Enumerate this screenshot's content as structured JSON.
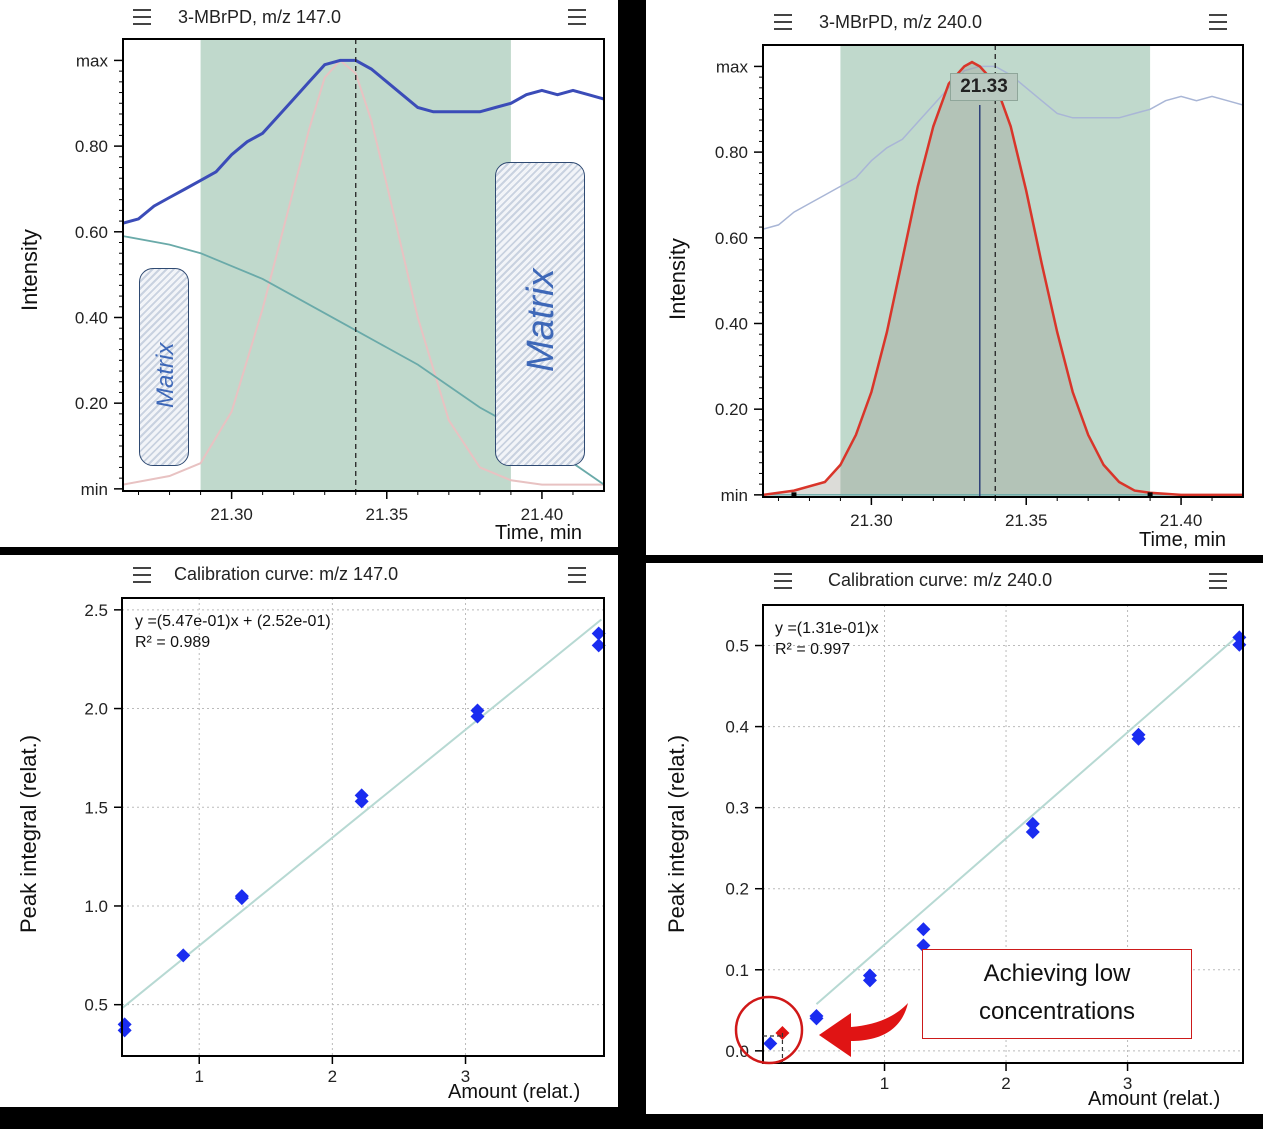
{
  "colors": {
    "peak_window": "#8cb9a2",
    "matrix_trace": "#3b4cb8",
    "baseline_trace": "#6aaaa9",
    "analyte_trace": "#d9352a",
    "faint_analyte": "#e8c2c2",
    "points": "#1a2cf0",
    "highlight_point": "#e01414",
    "fit_line": "#b7d9d3"
  },
  "panels": {
    "tl": {
      "title": "3-MBrPD, m/z 147.0",
      "ylabel": "Intensity",
      "xlabel": "Time, min",
      "matrix_left": "Matrix",
      "matrix_right": "Matrix"
    },
    "tr": {
      "title": "3-MBrPD, m/z 240.0",
      "ylabel": "Intensity",
      "xlabel": "Time, min",
      "peak_label": "21.33"
    },
    "bl": {
      "title": "Calibration curve: m/z 147.0",
      "ylabel": "Peak integral (relat.)",
      "xlabel": "Amount (relat.)",
      "equation": "y =(5.47e-01)x + (2.52e-01)",
      "r2": "R² = 0.989"
    },
    "br": {
      "title": "Calibration curve: m/z 240.0",
      "ylabel": "Peak integral (relat.)",
      "xlabel": "Amount (relat.)",
      "equation": "y =(1.31e-01)x",
      "r2": "R² = 0.997",
      "callout": "Achieving low concentrations"
    }
  },
  "chart_data": [
    {
      "type": "line",
      "title": "3-MBrPD, m/z 147.0",
      "xlabel": "Time, min",
      "ylabel": "Intensity",
      "xlim": [
        21.265,
        21.42
      ],
      "ylim": [
        -0.005,
        1.05
      ],
      "y_tick_labels": [
        "min",
        "0.20",
        "0.40",
        "0.60",
        "0.80",
        "max"
      ],
      "y_tick_values": [
        0,
        0.2,
        0.4,
        0.6,
        0.8,
        1.0
      ],
      "x_ticks": [
        21.3,
        21.35,
        21.4
      ],
      "x_tick_labels": [
        "21.30",
        "21.35",
        "21.40"
      ],
      "peak_window": [
        21.29,
        21.39
      ],
      "marker_line": 21.34,
      "series": [
        {
          "role": "matrix",
          "x": [
            21.265,
            21.27,
            21.275,
            21.28,
            21.285,
            21.29,
            21.295,
            21.3,
            21.305,
            21.31,
            21.315,
            21.32,
            21.325,
            21.33,
            21.335,
            21.34,
            21.345,
            21.35,
            21.355,
            21.36,
            21.365,
            21.37,
            21.375,
            21.38,
            21.385,
            21.39,
            21.395,
            21.4,
            21.405,
            21.41,
            21.415,
            21.42
          ],
          "y": [
            0.62,
            0.63,
            0.66,
            0.68,
            0.7,
            0.72,
            0.74,
            0.78,
            0.81,
            0.83,
            0.87,
            0.91,
            0.95,
            0.99,
            1.0,
            1.0,
            0.98,
            0.95,
            0.92,
            0.89,
            0.88,
            0.88,
            0.88,
            0.88,
            0.89,
            0.9,
            0.92,
            0.93,
            0.92,
            0.93,
            0.92,
            0.91
          ]
        },
        {
          "role": "baseline",
          "x": [
            21.265,
            21.28,
            21.29,
            21.3,
            21.31,
            21.32,
            21.33,
            21.34,
            21.35,
            21.36,
            21.37,
            21.38,
            21.39,
            21.4,
            21.41,
            21.42
          ],
          "y": [
            0.59,
            0.57,
            0.55,
            0.52,
            0.49,
            0.45,
            0.41,
            0.37,
            0.33,
            0.29,
            0.24,
            0.19,
            0.15,
            0.1,
            0.06,
            0.01
          ]
        },
        {
          "role": "analyte",
          "x": [
            21.265,
            21.28,
            21.29,
            21.3,
            21.31,
            21.32,
            21.325,
            21.33,
            21.335,
            21.34,
            21.345,
            21.35,
            21.36,
            21.37,
            21.38,
            21.39,
            21.4,
            21.42
          ],
          "y": [
            0.01,
            0.03,
            0.06,
            0.18,
            0.42,
            0.7,
            0.84,
            0.96,
            1.0,
            0.97,
            0.86,
            0.71,
            0.4,
            0.16,
            0.05,
            0.02,
            0.01,
            0.01
          ]
        }
      ]
    },
    {
      "type": "line",
      "title": "3-MBrPD, m/z 240.0",
      "xlabel": "Time, min",
      "ylabel": "Intensity",
      "xlim": [
        21.265,
        21.42
      ],
      "ylim": [
        -0.005,
        1.05
      ],
      "y_tick_labels": [
        "min",
        "0.20",
        "0.40",
        "0.60",
        "0.80",
        "max"
      ],
      "y_tick_values": [
        0,
        0.2,
        0.4,
        0.6,
        0.8,
        1.0
      ],
      "x_ticks": [
        21.3,
        21.35,
        21.4
      ],
      "x_tick_labels": [
        "21.30",
        "21.35",
        "21.40"
      ],
      "peak_window": [
        21.29,
        21.39
      ],
      "marker_line": 21.34,
      "apex_line": 21.335,
      "peak_label": "21.33",
      "series": [
        {
          "role": "matrix",
          "x": [
            21.265,
            21.27,
            21.275,
            21.28,
            21.285,
            21.29,
            21.295,
            21.3,
            21.305,
            21.31,
            21.315,
            21.32,
            21.325,
            21.33,
            21.335,
            21.34,
            21.345,
            21.35,
            21.355,
            21.36,
            21.365,
            21.37,
            21.375,
            21.38,
            21.385,
            21.39,
            21.395,
            21.4,
            21.405,
            21.41,
            21.415,
            21.42
          ],
          "y": [
            0.62,
            0.63,
            0.66,
            0.68,
            0.7,
            0.72,
            0.74,
            0.78,
            0.81,
            0.83,
            0.87,
            0.91,
            0.95,
            0.99,
            1.0,
            1.0,
            0.98,
            0.95,
            0.92,
            0.89,
            0.88,
            0.88,
            0.88,
            0.88,
            0.89,
            0.9,
            0.92,
            0.93,
            0.92,
            0.93,
            0.92,
            0.91
          ]
        },
        {
          "role": "analyte",
          "x": [
            21.265,
            21.275,
            21.285,
            21.29,
            21.295,
            21.3,
            21.305,
            21.31,
            21.315,
            21.32,
            21.325,
            21.33,
            21.3325,
            21.335,
            21.34,
            21.345,
            21.35,
            21.355,
            21.36,
            21.365,
            21.37,
            21.375,
            21.38,
            21.385,
            21.39,
            21.4,
            21.42
          ],
          "y": [
            0.0,
            0.01,
            0.03,
            0.07,
            0.14,
            0.24,
            0.38,
            0.55,
            0.72,
            0.86,
            0.96,
            1.0,
            1.01,
            1.0,
            0.96,
            0.86,
            0.71,
            0.54,
            0.38,
            0.24,
            0.14,
            0.07,
            0.03,
            0.01,
            0.005,
            0.0,
            0.0
          ]
        }
      ]
    },
    {
      "type": "scatter",
      "title": "Calibration curve: m/z 147.0",
      "xlabel": "Amount (relat.)",
      "ylabel": "Peak integral (relat.)",
      "xlim": [
        0.42,
        4.04
      ],
      "ylim": [
        0.24,
        2.56
      ],
      "x_ticks": [
        1,
        2,
        3
      ],
      "y_ticks": [
        0.5,
        1.0,
        1.5,
        2.0,
        2.5
      ],
      "y_tick_labels": [
        "0.5",
        "1.0",
        "1.5",
        "2.0",
        "2.5"
      ],
      "equation": "y =(5.47e-01)x + (2.52e-01)",
      "r2": "R² = 0.989",
      "fit": {
        "slope": 0.547,
        "intercept": 0.252
      },
      "points": {
        "x": [
          0.44,
          0.44,
          0.88,
          1.32,
          1.32,
          2.22,
          2.22,
          3.09,
          3.09,
          4.0,
          4.0
        ],
        "y": [
          0.37,
          0.4,
          0.75,
          1.04,
          1.05,
          1.53,
          1.56,
          1.96,
          1.99,
          2.32,
          2.38
        ]
      }
    },
    {
      "type": "scatter",
      "title": "Calibration curve: m/z 240.0",
      "xlabel": "Amount (relat.)",
      "ylabel": "Peak integral (relat.)",
      "xlim": [
        0.0,
        3.95
      ],
      "ylim": [
        -0.015,
        0.55
      ],
      "x_ticks": [
        1,
        2,
        3
      ],
      "y_ticks": [
        0.0,
        0.1,
        0.2,
        0.3,
        0.4,
        0.5
      ],
      "y_tick_labels": [
        "0.0",
        "0.1",
        "0.2",
        "0.3",
        "0.4",
        "0.5"
      ],
      "equation": "y =(1.31e-01)x",
      "r2": "R² = 0.997",
      "fit": {
        "slope": 0.131,
        "intercept": 0.0
      },
      "points": {
        "x": [
          0.06,
          0.44,
          0.44,
          0.88,
          0.88,
          1.32,
          1.32,
          2.22,
          2.22,
          3.09,
          3.09,
          3.92,
          3.92
        ],
        "y": [
          0.009,
          0.04,
          0.043,
          0.087,
          0.093,
          0.13,
          0.15,
          0.27,
          0.28,
          0.385,
          0.39,
          0.501,
          0.51
        ]
      },
      "highlight_points": {
        "x": [
          0.16
        ],
        "y": [
          0.022
        ]
      },
      "annotation": "Achieving low concentrations"
    }
  ]
}
